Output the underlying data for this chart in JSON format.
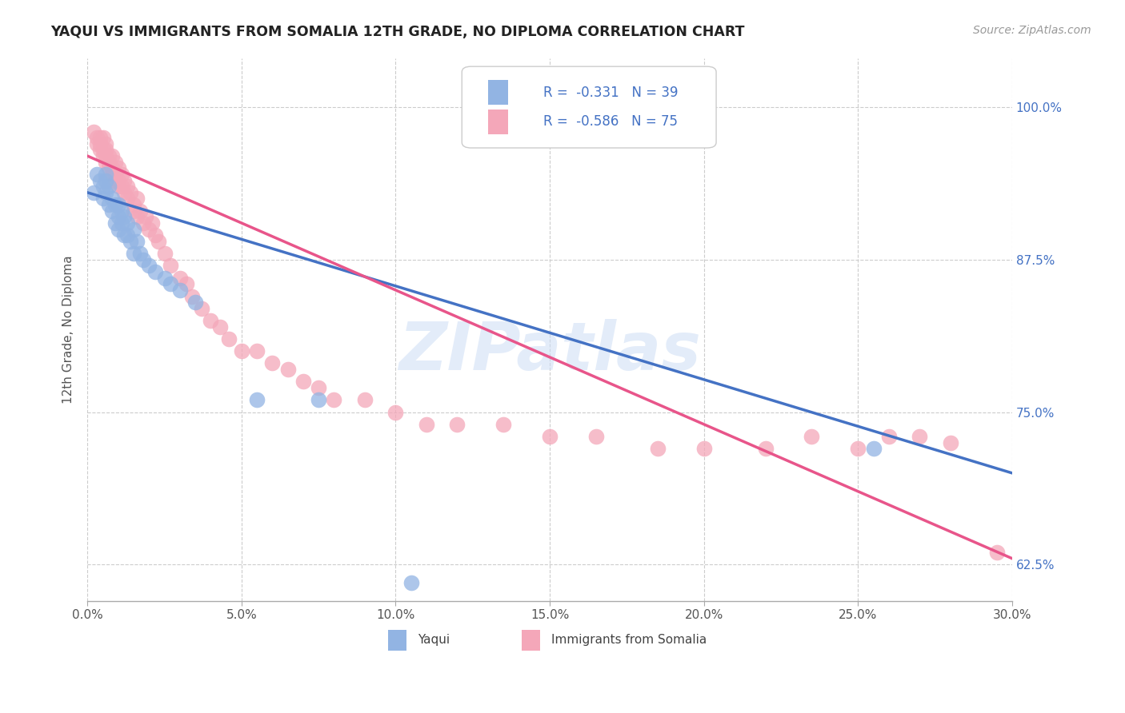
{
  "title": "YAQUI VS IMMIGRANTS FROM SOMALIA 12TH GRADE, NO DIPLOMA CORRELATION CHART",
  "source": "Source: ZipAtlas.com",
  "ylabel": "12th Grade, No Diploma",
  "ytick_labels": [
    "100.0%",
    "87.5%",
    "75.0%",
    "62.5%"
  ],
  "ytick_values": [
    1.0,
    0.875,
    0.75,
    0.625
  ],
  "xlim": [
    0.0,
    0.3
  ],
  "ylim": [
    0.595,
    1.04
  ],
  "color_blue": "#92b4e3",
  "color_pink": "#f4a7b9",
  "line_color_blue": "#4472c4",
  "line_color_pink": "#e8558a",
  "watermark": "ZIPatlas",
  "yaqui_x": [
    0.002,
    0.003,
    0.004,
    0.005,
    0.005,
    0.006,
    0.006,
    0.006,
    0.007,
    0.007,
    0.008,
    0.008,
    0.009,
    0.009,
    0.01,
    0.01,
    0.01,
    0.011,
    0.011,
    0.012,
    0.012,
    0.013,
    0.013,
    0.014,
    0.015,
    0.015,
    0.016,
    0.017,
    0.018,
    0.02,
    0.022,
    0.025,
    0.027,
    0.03,
    0.035,
    0.055,
    0.075,
    0.255,
    0.105
  ],
  "yaqui_y": [
    0.93,
    0.945,
    0.94,
    0.935,
    0.925,
    0.94,
    0.93,
    0.945,
    0.935,
    0.92,
    0.925,
    0.915,
    0.92,
    0.905,
    0.92,
    0.91,
    0.9,
    0.915,
    0.905,
    0.91,
    0.895,
    0.905,
    0.895,
    0.89,
    0.9,
    0.88,
    0.89,
    0.88,
    0.875,
    0.87,
    0.865,
    0.86,
    0.855,
    0.85,
    0.84,
    0.76,
    0.76,
    0.72,
    0.61
  ],
  "somalia_x": [
    0.002,
    0.003,
    0.003,
    0.004,
    0.004,
    0.004,
    0.005,
    0.005,
    0.005,
    0.006,
    0.006,
    0.006,
    0.006,
    0.007,
    0.007,
    0.007,
    0.008,
    0.008,
    0.008,
    0.009,
    0.009,
    0.009,
    0.01,
    0.01,
    0.01,
    0.011,
    0.011,
    0.012,
    0.012,
    0.013,
    0.013,
    0.014,
    0.015,
    0.015,
    0.016,
    0.016,
    0.017,
    0.018,
    0.019,
    0.02,
    0.021,
    0.022,
    0.023,
    0.025,
    0.027,
    0.03,
    0.032,
    0.034,
    0.037,
    0.04,
    0.043,
    0.046,
    0.05,
    0.055,
    0.06,
    0.065,
    0.07,
    0.075,
    0.08,
    0.09,
    0.1,
    0.11,
    0.12,
    0.135,
    0.15,
    0.165,
    0.185,
    0.2,
    0.22,
    0.235,
    0.25,
    0.26,
    0.27,
    0.28,
    0.295
  ],
  "somalia_y": [
    0.98,
    0.975,
    0.97,
    0.975,
    0.965,
    0.97,
    0.975,
    0.965,
    0.96,
    0.97,
    0.96,
    0.955,
    0.965,
    0.96,
    0.955,
    0.95,
    0.96,
    0.95,
    0.945,
    0.955,
    0.945,
    0.94,
    0.95,
    0.94,
    0.935,
    0.945,
    0.935,
    0.94,
    0.93,
    0.935,
    0.925,
    0.93,
    0.92,
    0.915,
    0.925,
    0.91,
    0.915,
    0.905,
    0.91,
    0.9,
    0.905,
    0.895,
    0.89,
    0.88,
    0.87,
    0.86,
    0.855,
    0.845,
    0.835,
    0.825,
    0.82,
    0.81,
    0.8,
    0.8,
    0.79,
    0.785,
    0.775,
    0.77,
    0.76,
    0.76,
    0.75,
    0.74,
    0.74,
    0.74,
    0.73,
    0.73,
    0.72,
    0.72,
    0.72,
    0.73,
    0.72,
    0.73,
    0.73,
    0.725,
    0.635
  ],
  "blue_line_x": [
    0.0,
    0.3
  ],
  "blue_line_y": [
    0.93,
    0.7
  ],
  "pink_line_x": [
    0.0,
    0.3
  ],
  "pink_line_y": [
    0.96,
    0.63
  ]
}
